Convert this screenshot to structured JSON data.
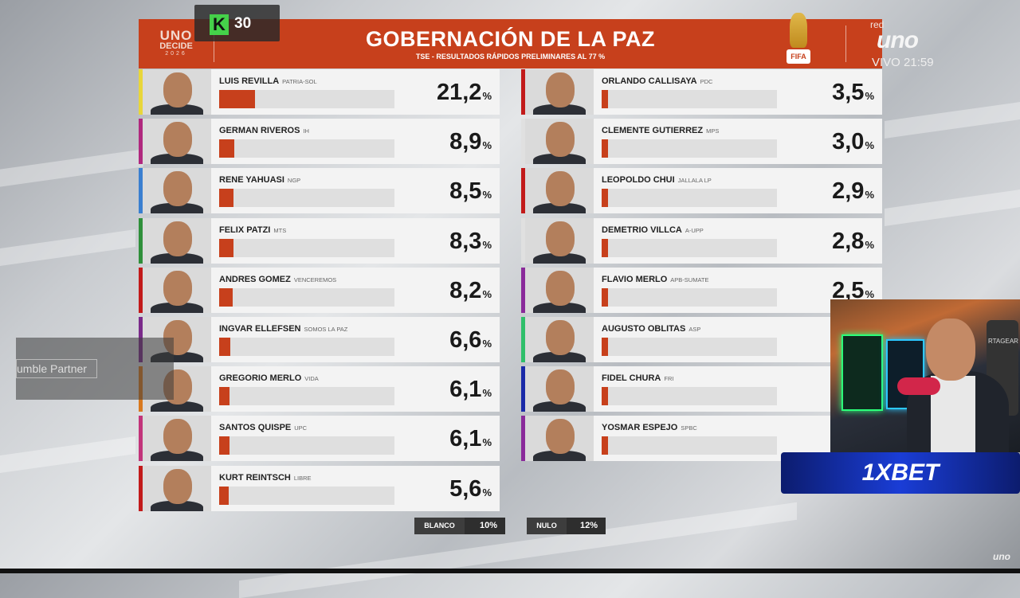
{
  "header": {
    "brand_l1": "UNO",
    "brand_l2": "DECIDE",
    "brand_l3": "2026",
    "title": "GOBERNACIÓN DE LA PAZ",
    "subtitle": "TSE - RESULTADOS RÁPIDOS PRELIMINARES AL 77 %",
    "fifa_label": "FIFA",
    "network_prefix": "red",
    "network_logo": "uno",
    "live": "VIVO 21:59"
  },
  "kick_badge": {
    "logo": "K",
    "viewers": "30"
  },
  "left_candidates": [
    {
      "name": "LUIS REVILLA",
      "party": "PATRIA-SOL",
      "pct": "21,2",
      "value": 21.2,
      "color": "#e8d63a"
    },
    {
      "name": "GERMAN RIVEROS",
      "party": "IH",
      "pct": "8,9",
      "value": 8.9,
      "color": "#b0287e"
    },
    {
      "name": "RENE YAHUASI",
      "party": "NGP",
      "pct": "8,5",
      "value": 8.5,
      "color": "#3a7fd0"
    },
    {
      "name": "FELIX PATZI",
      "party": "MTS",
      "pct": "8,3",
      "value": 8.3,
      "color": "#2f8f3a"
    },
    {
      "name": "ANDRES GOMEZ",
      "party": "VENCEREMOS",
      "pct": "8,2",
      "value": 8.2,
      "color": "#c21a1a"
    },
    {
      "name": "INGVAR ELLEFSEN",
      "party": "SOMOS LA PAZ",
      "pct": "6,6",
      "value": 6.6,
      "color": "#7a2a8a"
    },
    {
      "name": "GREGORIO MERLO",
      "party": "VIDA",
      "pct": "6,1",
      "value": 6.1,
      "color": "#d9791e"
    },
    {
      "name": "SANTOS QUISPE",
      "party": "UPC",
      "pct": "6,1",
      "value": 6.1,
      "color": "#c2347a"
    },
    {
      "name": "KURT REINTSCH",
      "party": "LIBRE",
      "pct": "5,6",
      "value": 5.6,
      "color": "#c21a1a"
    }
  ],
  "right_candidates": [
    {
      "name": "ORLANDO CALLISAYA",
      "party": "PDC",
      "pct": "3,5",
      "value": 3.5,
      "color": "#c21a1a"
    },
    {
      "name": "CLEMENTE GUTIERREZ",
      "party": "MPS",
      "pct": "3,0",
      "value": 3.0,
      "color": "#e0e0e0"
    },
    {
      "name": "LEOPOLDO CHUI",
      "party": "JALLALA LP",
      "pct": "2,9",
      "value": 2.9,
      "color": "#c21a1a"
    },
    {
      "name": "DEMETRIO VILLCA",
      "party": "A-UPP",
      "pct": "2,8",
      "value": 2.8,
      "color": "#e0e0e0"
    },
    {
      "name": "FLAVIO MERLO",
      "party": "APB-SUMATE",
      "pct": "2,5",
      "value": 2.5,
      "color": "#8a2a9a"
    },
    {
      "name": "AUGUSTO OBLITAS",
      "party": "ASP",
      "pct": "",
      "value": 1.5,
      "color": "#2fbf6a"
    },
    {
      "name": "FIDEL CHURA",
      "party": "FRI",
      "pct": "",
      "value": 1.2,
      "color": "#1a2aa8"
    },
    {
      "name": "YOSMAR ESPEJO",
      "party": "SPBC",
      "pct": "",
      "value": 1.0,
      "color": "#8a2a9a"
    }
  ],
  "pct_symbol": "%",
  "blanco": {
    "label": "BLANCO",
    "value": "10%"
  },
  "nulo": {
    "label": "NULO",
    "value": "12%"
  },
  "overlays": {
    "partner_text": "umble Partner",
    "webcam_chair_text": "RTAGEAR",
    "sponsor": "1XBET",
    "corner_logo": "uno"
  }
}
